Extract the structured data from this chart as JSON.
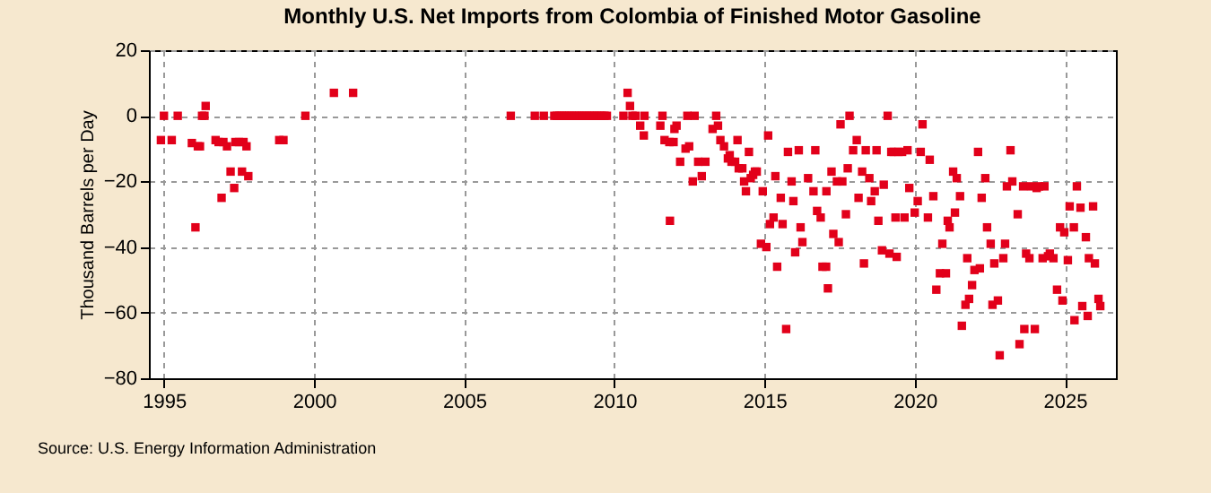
{
  "chart_data": {
    "type": "scatter",
    "title": "Monthly U.S. Net Imports from Colombia of Finished Motor Gasoline",
    "ylabel": "Thousand Barrels per Day",
    "annotations": [
      "Source: U.S. Energy Information Administration"
    ],
    "marker": "square",
    "grid": true,
    "xlim": [
      1994.5,
      2026.7
    ],
    "xticks": [
      1995,
      2000,
      2005,
      2010,
      2015,
      2020,
      2025
    ],
    "ylim": [
      -80,
      20
    ],
    "yticks": [
      -80,
      -60,
      -40,
      -20,
      0,
      20
    ],
    "series": [
      {
        "color": "#e2001a",
        "x": [
          1994.9,
          1995.0,
          1995.26,
          1995.46,
          1995.93,
          1996.05,
          1996.13,
          1996.2,
          1996.27,
          1996.35,
          1996.39,
          1996.72,
          1996.82,
          1996.92,
          1996.98,
          1997.1,
          1997.22,
          1997.34,
          1997.38,
          1997.5,
          1997.6,
          1997.65,
          1997.75,
          1997.81,
          1998.84,
          1998.98,
          1999.71,
          2000.66,
          2001.3,
          2006.55,
          2007.35,
          2007.65,
          2008.0,
          2008.08,
          2008.17,
          2008.25,
          2008.33,
          2008.42,
          2008.5,
          2008.58,
          2008.67,
          2008.75,
          2008.83,
          2008.92,
          2009.0,
          2009.08,
          2009.17,
          2009.25,
          2009.33,
          2009.42,
          2009.5,
          2009.58,
          2009.67,
          2009.75,
          2010.3,
          2010.44,
          2010.52,
          2010.6,
          2010.7,
          2010.86,
          2010.98,
          2011.0,
          2011.53,
          2011.6,
          2011.67,
          2011.83,
          2011.85,
          2011.97,
          2012.0,
          2012.07,
          2012.19,
          2012.37,
          2012.43,
          2012.49,
          2012.61,
          2012.67,
          2012.79,
          2012.91,
          2013.03,
          2013.27,
          2013.39,
          2013.45,
          2013.53,
          2013.65,
          2013.78,
          2013.84,
          2013.9,
          2014.02,
          2014.1,
          2014.14,
          2014.26,
          2014.32,
          2014.38,
          2014.48,
          2014.54,
          2014.62,
          2014.68,
          2014.74,
          2014.88,
          2014.94,
          2015.06,
          2015.12,
          2015.18,
          2015.3,
          2015.36,
          2015.42,
          2015.54,
          2015.6,
          2015.72,
          2015.78,
          2015.9,
          2015.96,
          2016.02,
          2016.14,
          2016.2,
          2016.26,
          2016.45,
          2016.63,
          2016.69,
          2016.75,
          2016.87,
          2016.93,
          2017.05,
          2017.06,
          2017.11,
          2017.23,
          2017.29,
          2017.41,
          2017.47,
          2017.53,
          2017.59,
          2017.71,
          2017.77,
          2017.83,
          2017.95,
          2018.07,
          2018.13,
          2018.25,
          2018.31,
          2018.37,
          2018.49,
          2018.55,
          2018.67,
          2018.73,
          2018.79,
          2018.91,
          2018.97,
          2019.1,
          2019.16,
          2019.22,
          2019.3,
          2019.36,
          2019.4,
          2019.46,
          2019.58,
          2019.66,
          2019.76,
          2019.82,
          2020.0,
          2020.1,
          2020.2,
          2020.26,
          2020.44,
          2020.5,
          2020.62,
          2020.72,
          2020.84,
          2020.92,
          2021.04,
          2021.1,
          2021.16,
          2021.28,
          2021.34,
          2021.4,
          2021.51,
          2021.57,
          2021.69,
          2021.75,
          2021.81,
          2021.91,
          2021.99,
          2022.11,
          2022.17,
          2022.23,
          2022.35,
          2022.41,
          2022.53,
          2022.59,
          2022.65,
          2022.77,
          2022.83,
          2022.95,
          2023.01,
          2023.07,
          2023.19,
          2023.25,
          2023.43,
          2023.49,
          2023.61,
          2023.65,
          2023.71,
          2023.82,
          2023.88,
          2024.0,
          2024.06,
          2024.14,
          2024.26,
          2024.32,
          2024.44,
          2024.5,
          2024.62,
          2024.74,
          2024.84,
          2024.92,
          2024.98,
          2025.1,
          2025.16,
          2025.3,
          2025.32,
          2025.4,
          2025.52,
          2025.58,
          2025.7,
          2025.76,
          2025.8,
          2025.94,
          2026.0,
          2026.12,
          2026.18
        ],
        "values": [
          -7.4,
          0,
          -7.4,
          0,
          -8.3,
          -34,
          -9.3,
          -9.3,
          0,
          0,
          3,
          -7.4,
          -8,
          -25,
          -8,
          -9.3,
          -17,
          -22,
          -8,
          -8,
          -17,
          -8,
          -9.3,
          -18.4,
          -7.4,
          -7.4,
          0,
          7,
          7,
          0,
          0,
          0,
          0,
          0,
          0,
          0,
          0,
          0,
          0,
          0,
          0,
          0,
          0,
          0,
          0,
          0,
          0,
          0,
          0,
          0,
          0,
          0,
          0,
          0,
          0,
          7,
          3,
          0,
          0,
          -3,
          -6,
          0,
          -3,
          0,
          -7.4,
          -8,
          -32,
          -8,
          -4,
          -3,
          -14,
          -10,
          0,
          -9.3,
          -20,
          0,
          -14,
          -18.4,
          -14,
          -4,
          0,
          -3,
          -7.4,
          -9.3,
          -13,
          -12,
          -14,
          -14,
          -7.4,
          -16,
          -16,
          -20,
          -23,
          -11,
          -19,
          -18,
          -17,
          -17,
          -39,
          -23,
          -40,
          -6,
          -33,
          -31,
          -18.4,
          -46,
          -25,
          -33,
          -65,
          -11,
          -20,
          -26,
          -41.6,
          -10.5,
          -34,
          -38.5,
          -19,
          -23,
          -10.5,
          -29,
          -31,
          -46,
          -46,
          -23,
          -52.6,
          -17,
          -36,
          -20,
          -38.5,
          -2.6,
          -20,
          -30,
          -16,
          0,
          -10.5,
          -7.4,
          -25,
          -17,
          -45,
          -10.5,
          -19,
          -26,
          -23,
          -10.5,
          -32,
          -41,
          -21,
          0,
          -42,
          -11,
          -11,
          -31,
          -43,
          -11,
          -11,
          -31,
          -10.5,
          -22,
          -29.5,
          -26,
          -11,
          -2.6,
          -31,
          -13.4,
          -24.5,
          -53,
          -48,
          -39,
          -48,
          -32,
          -34,
          -17,
          -29.5,
          -19,
          -24.5,
          -64,
          -57.6,
          -43.4,
          -55.8,
          -51.6,
          -47,
          -11,
          -46.5,
          -25,
          -19,
          -34,
          -39,
          -57.6,
          -45,
          -56.3,
          -73,
          -43.4,
          -39,
          -21.5,
          -10.5,
          -20,
          -30,
          -69.6,
          -21.5,
          -65,
          -42,
          -43.4,
          -21.5,
          -65,
          -22,
          -21.5,
          -43.4,
          -21.5,
          -42.8,
          -42,
          -43.4,
          -53,
          -34,
          -56.3,
          -35.5,
          -44,
          -27.6,
          -34,
          -62.3,
          -21.5,
          -28,
          -58,
          -37,
          -61,
          -43.4,
          -27.6,
          -45,
          -55.8,
          -58
        ]
      }
    ]
  }
}
